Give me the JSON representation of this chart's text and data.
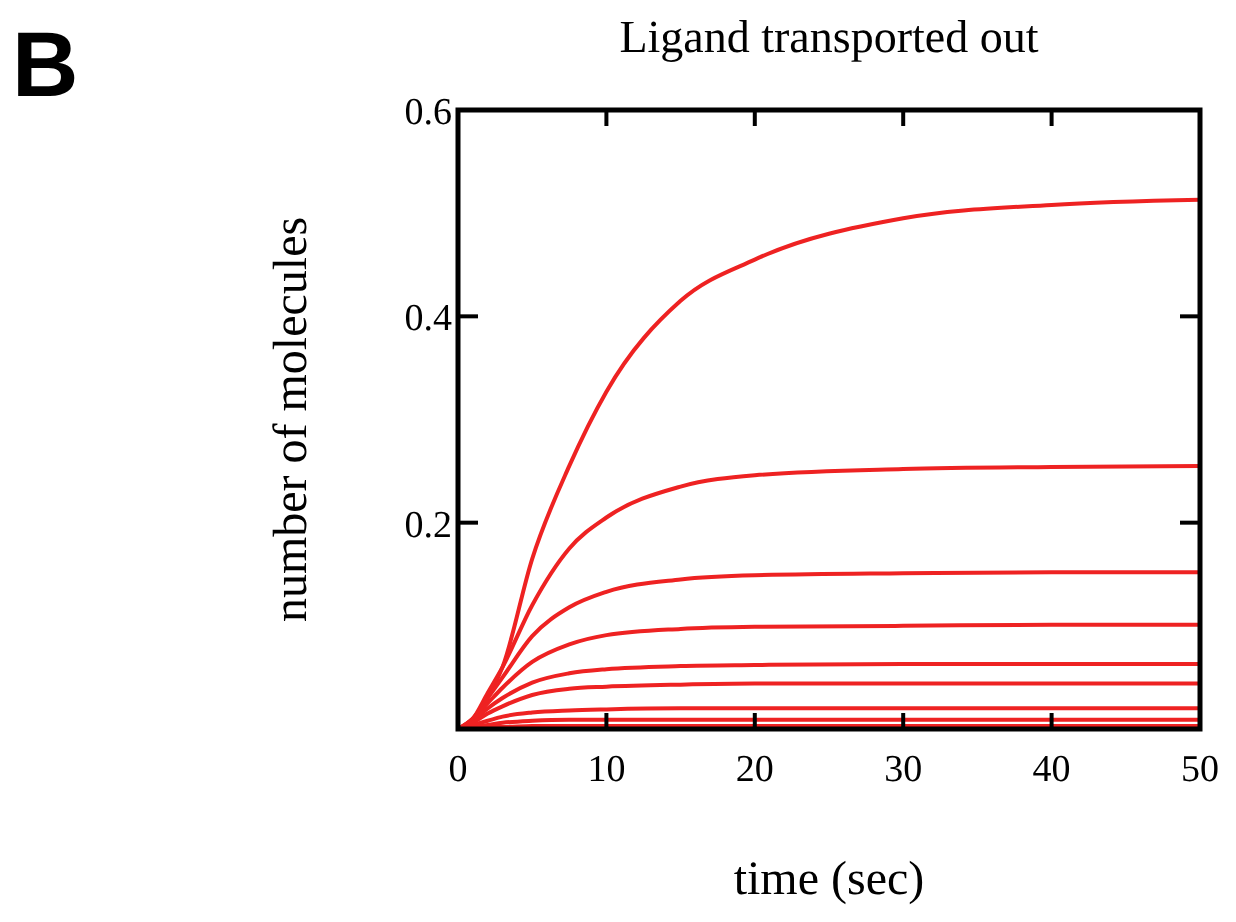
{
  "chart_data": {
    "type": "line",
    "title": "Ligand transported out",
    "xlabel": "time (sec)",
    "ylabel": "number of molecules",
    "annotations": [
      "B"
    ],
    "xlim": [
      0,
      50
    ],
    "xticks": [
      0,
      10,
      20,
      30,
      40,
      50
    ],
    "ylim": [
      0,
      0.6
    ],
    "yticks": [
      0.2,
      0.4,
      0.6
    ],
    "x": [
      0,
      1,
      2,
      3,
      5,
      7.5,
      10,
      15,
      20,
      30,
      40,
      50
    ],
    "grid": false,
    "marker": "none",
    "line_style": "solid",
    "series": [
      {
        "color": "#ee2222",
        "values": [
          0,
          0.01,
          0.03,
          0.06,
          0.165,
          0.255,
          0.327,
          0.415,
          0.455,
          0.495,
          0.508,
          0.513
        ]
      },
      {
        "color": "#ee2222",
        "values": [
          0,
          0.01,
          0.035,
          0.06,
          0.12,
          0.175,
          0.205,
          0.235,
          0.246,
          0.252,
          0.254,
          0.255
        ]
      },
      {
        "color": "#ee2222",
        "values": [
          0,
          0.01,
          0.03,
          0.05,
          0.09,
          0.118,
          0.133,
          0.145,
          0.149,
          0.151,
          0.152,
          0.152
        ]
      },
      {
        "color": "#ee2222",
        "values": [
          0,
          0.01,
          0.025,
          0.04,
          0.065,
          0.082,
          0.091,
          0.097,
          0.099,
          0.1,
          0.101,
          0.101
        ]
      },
      {
        "color": "#ee2222",
        "values": [
          0,
          0.008,
          0.02,
          0.03,
          0.045,
          0.054,
          0.058,
          0.061,
          0.062,
          0.063,
          0.063,
          0.063
        ]
      },
      {
        "color": "#ee2222",
        "values": [
          0,
          0.006,
          0.015,
          0.022,
          0.033,
          0.039,
          0.041,
          0.043,
          0.044,
          0.044,
          0.044,
          0.044
        ]
      },
      {
        "color": "#ee2222",
        "values": [
          0,
          0.004,
          0.008,
          0.012,
          0.016,
          0.018,
          0.019,
          0.02,
          0.02,
          0.02,
          0.02,
          0.02
        ]
      },
      {
        "color": "#ee2222",
        "values": [
          0,
          0.002,
          0.004,
          0.006,
          0.008,
          0.009,
          0.009,
          0.009,
          0.009,
          0.009,
          0.009,
          0.009
        ]
      },
      {
        "color": "#ee2222",
        "values": [
          0,
          0.001,
          0.002,
          0.002,
          0.003,
          0.003,
          0.003,
          0.003,
          0.003,
          0.003,
          0.003,
          0.003
        ]
      }
    ]
  }
}
